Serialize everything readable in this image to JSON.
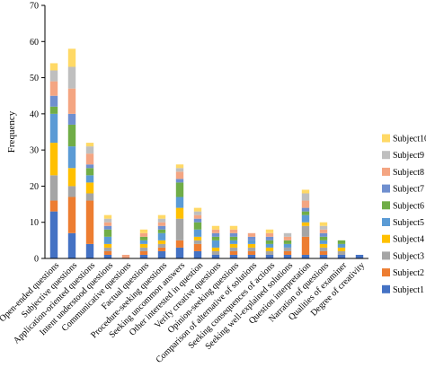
{
  "chart_data": {
    "type": "bar",
    "stacked": true,
    "title": "",
    "xlabel": "",
    "ylabel": "Frequency",
    "ylim": [
      0,
      70
    ],
    "yticks": [
      0,
      10,
      20,
      30,
      40,
      50,
      60,
      70
    ],
    "grid": false,
    "legend_position": "right",
    "categories": [
      "Open-ended questions",
      "Subjective questions",
      "Application-oriented questions",
      "Intent understood questions",
      "Communicative questions",
      "Factual questions",
      "Procedure-seeking questions",
      "Seeking uncommon answers",
      "Other interested in question",
      "Verify creative questions",
      "Opinion-seeking questions",
      "Comparison of alternative of solutions",
      "Seeking consequences of actions",
      "Seeking well-explained solutions",
      "Question interpretation",
      "Narration of questions",
      "Qualities of examiner",
      "Degree of creativity"
    ],
    "series": [
      {
        "name": "Subject1",
        "color": "#4472C4",
        "values": [
          13,
          7,
          4,
          1,
          0,
          1,
          2,
          3,
          2,
          1,
          1,
          1,
          1,
          1,
          1,
          1,
          1,
          1
        ]
      },
      {
        "name": "Subject2",
        "color": "#ED7D31",
        "values": [
          3,
          10,
          12,
          1,
          0,
          1,
          1,
          2,
          2,
          0,
          1,
          1,
          0,
          1,
          5,
          1,
          0,
          0
        ]
      },
      {
        "name": "Subject3",
        "color": "#A5A5A5",
        "values": [
          7,
          3,
          2,
          1,
          0,
          1,
          1,
          6,
          1,
          1,
          1,
          1,
          1,
          1,
          3,
          1,
          1,
          0
        ]
      },
      {
        "name": "Subject4",
        "color": "#FFC000",
        "values": [
          9,
          5,
          3,
          1,
          0,
          1,
          1,
          3,
          1,
          1,
          1,
          1,
          1,
          0,
          1,
          1,
          1,
          0
        ]
      },
      {
        "name": "Subject5",
        "color": "#5B9BD5",
        "values": [
          8,
          6,
          2,
          2,
          0,
          1,
          2,
          3,
          2,
          2,
          1,
          1,
          1,
          1,
          2,
          1,
          1,
          0
        ]
      },
      {
        "name": "Subject6",
        "color": "#70AD47",
        "values": [
          2,
          6,
          2,
          2,
          0,
          1,
          1,
          4,
          2,
          1,
          1,
          0,
          1,
          1,
          1,
          1,
          1,
          0
        ]
      },
      {
        "name": "Subject7",
        "color": "#6F8FCF",
        "values": [
          3,
          3,
          1,
          1,
          0,
          0,
          1,
          1,
          1,
          1,
          1,
          1,
          1,
          0,
          1,
          1,
          0,
          0
        ]
      },
      {
        "name": "Subject8",
        "color": "#F4A582",
        "values": [
          4,
          7,
          3,
          1,
          1,
          1,
          1,
          2,
          1,
          1,
          1,
          1,
          1,
          1,
          2,
          1,
          0,
          0
        ]
      },
      {
        "name": "Subject9",
        "color": "#BFBFBF",
        "values": [
          3,
          6,
          2,
          1,
          0,
          0,
          1,
          1,
          1,
          0,
          0,
          0,
          0,
          1,
          2,
          1,
          0,
          0
        ]
      },
      {
        "name": "Subject10",
        "color": "#FFD966",
        "values": [
          2,
          5,
          1,
          1,
          0,
          1,
          1,
          1,
          1,
          1,
          1,
          0,
          1,
          0,
          1,
          1,
          0,
          0
        ]
      }
    ]
  }
}
